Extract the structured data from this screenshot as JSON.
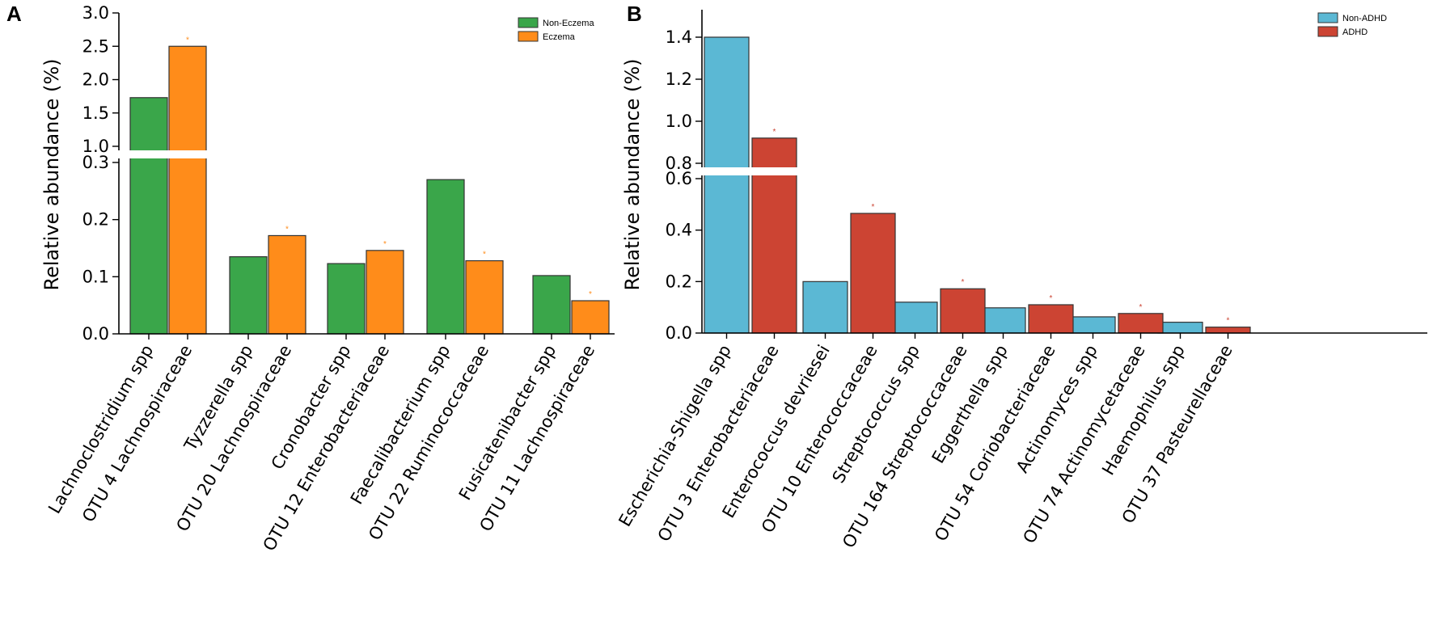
{
  "chart_data": [
    {
      "type": "bar",
      "panel_label": "A",
      "ylabel": "Relative abundance (%)",
      "y_axis_break": true,
      "ylim_lower": [
        0.0,
        0.3
      ],
      "ylim_upper": [
        1.0,
        3.0
      ],
      "yticks_lower": [
        "0.0",
        "0.1",
        "0.2",
        "0.3"
      ],
      "yticks_upper": [
        "1.0",
        "1.5",
        "2.0",
        "2.5",
        "3.0"
      ],
      "categories": [
        [
          "Lachnoclostridium spp",
          "OTU 4 Lachnospiraceae"
        ],
        [
          "Tyzzerella spp",
          "OTU 20 Lachnospiraceae"
        ],
        [
          "Cronobacter spp",
          "OTU 12 Enterobacteriaceae"
        ],
        [
          "Faecalibacterium spp",
          "OTU 22 Ruminococcaceae"
        ],
        [
          "Fusicatenibacter spp",
          "OTU 11 Lachnospiraceae"
        ]
      ],
      "series": [
        {
          "name": "Non-Eczema",
          "color": "#3aa64a",
          "values": [
            1.73,
            0.135,
            0.123,
            0.27,
            0.102
          ]
        },
        {
          "name": "Eczema",
          "color": "#ff8c1a",
          "values": [
            2.5,
            0.172,
            0.146,
            0.128,
            0.058
          ]
        }
      ],
      "significance_marker": "*",
      "legend_position": "top-right",
      "grid": false
    },
    {
      "type": "bar",
      "panel_label": "B",
      "ylabel": "Relative abundance (%)",
      "y_axis_break": true,
      "ylim_lower": [
        0.0,
        0.6
      ],
      "ylim_upper": [
        0.8,
        1.5
      ],
      "yticks_lower": [
        "0.0",
        "0.2",
        "0.4",
        "0.6"
      ],
      "yticks_upper": [
        "0.8",
        "1.0",
        "1.2",
        "1.4"
      ],
      "categories": [
        [
          "Escherichia-Shigella spp",
          "OTU 3 Enterobacteriaceae"
        ],
        [
          "Enterococcus devriesei",
          "OTU 10 Enterococcaceae"
        ],
        [
          "Streptococcus spp",
          "OTU 164 Streptococcaceae"
        ],
        [
          "Eggerthella spp",
          "OTU 54 Coriobacteriaceae"
        ],
        [
          "Actinomyces spp",
          "OTU 74 Actinomycetaceae"
        ],
        [
          "Haemophilus spp",
          "OTU 37 Pasteurellaceae"
        ]
      ],
      "series": [
        {
          "name": "Non-ADHD",
          "color": "#5bb8d4",
          "values": [
            1.4,
            0.2,
            0.12,
            0.098,
            0.063,
            0.042
          ]
        },
        {
          "name": "ADHD",
          "color": "#cc4433",
          "values": [
            0.92,
            0.465,
            0.172,
            0.11,
            0.076,
            0.023
          ]
        }
      ],
      "significance_marker": "*",
      "legend_position": "top-right",
      "grid": false
    }
  ]
}
